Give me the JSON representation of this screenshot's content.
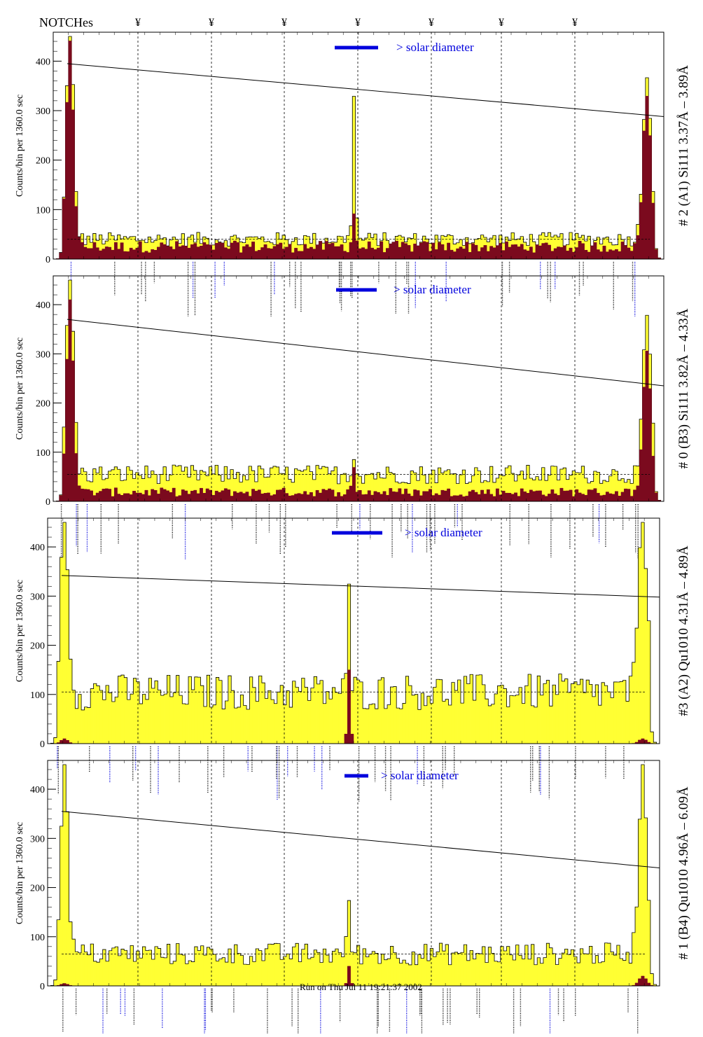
{
  "header": {
    "label": "NOTCHes",
    "notch_marker": "¥"
  },
  "footer": {
    "text": "Run on Thu Jul 11 19:21:37 2002"
  },
  "colors": {
    "fill": "#ffff33",
    "dark": "#7b0a1e",
    "blue": "#0000dd",
    "stroke": "#000000"
  },
  "chart_data": [
    {
      "type": "bar",
      "title": "# 2 (A1) Si111  3.37Å – 3.89Å",
      "ylabel": "Counts/bin per   1360.0 sec",
      "ylim": [
        0,
        450
      ],
      "yticks": [
        0,
        100,
        200,
        300,
        400
      ],
      "legend_text": "> solar diameter",
      "baseline": 40,
      "trend_line": [
        395,
        288
      ],
      "left_peak": 450,
      "right_peak": 340,
      "center_peak": 330,
      "dark_level": 20,
      "dark_peak_left": 420,
      "dark_peak_right": 310,
      "dark_peak_center": 70
    },
    {
      "type": "bar",
      "title": "# 0 (B3) Si111  3.82Å – 4.33Å",
      "ylabel": "Counts/bin per   1360.0 sec",
      "ylim": [
        0,
        450
      ],
      "yticks": [
        0,
        100,
        200,
        300,
        400
      ],
      "legend_text": "> solar diameter",
      "baseline": 55,
      "trend_line": [
        370,
        235
      ],
      "left_peak": 440,
      "right_peak": 320,
      "center_peak": 100,
      "dark_level": 15,
      "dark_peak_left": 400,
      "dark_peak_right": 280,
      "dark_peak_center": 50
    },
    {
      "type": "bar",
      "title": "#3 (A2) Qu1010  4.31Å – 4.89Å",
      "ylabel": "Counts/bin per   1360.0 sec",
      "ylim": [
        0,
        450
      ],
      "yticks": [
        0,
        100,
        200,
        300,
        400
      ],
      "legend_text": "> solar diameter",
      "baseline": 105,
      "trend_line": [
        342,
        298
      ],
      "left_peak": 410,
      "right_peak": 385,
      "center_peak": 300,
      "dark_level": 0,
      "dark_peak_left": 10,
      "dark_peak_right": 10,
      "dark_peak_center": 150
    },
    {
      "type": "bar",
      "title": "# 1 (B4) Qu1010 4.96Å – 6.09Å",
      "ylabel": "Counts/bin per   1360.0 sec",
      "ylim": [
        0,
        450
      ],
      "yticks": [
        0,
        100,
        200,
        300,
        400
      ],
      "legend_text": "> solar diameter",
      "baseline": 65,
      "trend_line": [
        355,
        240
      ],
      "left_peak": 410,
      "right_peak": 400,
      "center_peak": 180,
      "dark_level": 0,
      "dark_peak_left": 5,
      "dark_peak_right": 20,
      "dark_peak_center": 40
    }
  ]
}
